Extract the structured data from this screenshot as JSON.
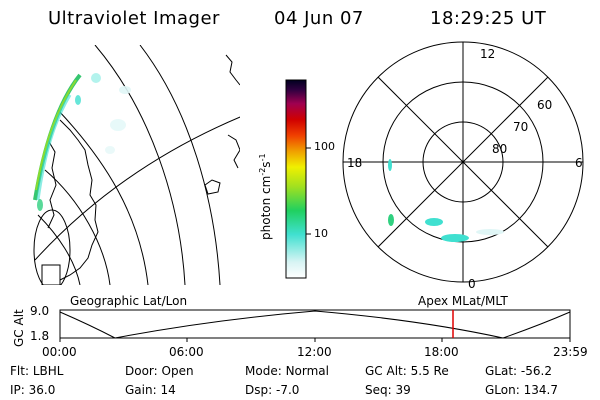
{
  "header": {
    "title": "Ultraviolet Imager",
    "date": "04 Jun 07",
    "time": "18:29:25 UT"
  },
  "colorbar": {
    "label": "photon cm",
    "label_exp": "-2",
    "label_s": "s",
    "label_s_exp": "-1",
    "ticks": [
      "100",
      "10"
    ]
  },
  "polar": {
    "mlt_labels": [
      "12",
      "18",
      "6",
      "0"
    ],
    "lat_labels": [
      "60",
      "70",
      "80"
    ]
  },
  "geo_map": {
    "label": "Geographic Lat/Lon"
  },
  "timeline": {
    "left_label": "Geographic Lat/Lon",
    "right_label": "Apex MLat/MLT",
    "axis_title": "GC Alt",
    "y_ticks": [
      "9.0",
      "1.8"
    ],
    "x_ticks": [
      "00:00",
      "06:00",
      "12:00",
      "18:00",
      "23:59"
    ],
    "marker_time": "18:29:25"
  },
  "info": {
    "row1": [
      {
        "label": "Flt:",
        "value": "LBHL"
      },
      {
        "label": "Door:",
        "value": "Open"
      },
      {
        "label": "Mode:",
        "value": "Normal"
      },
      {
        "label": "GC Alt:",
        "value": "5.5 Re"
      },
      {
        "label": "GLat:",
        "value": "-56.2"
      }
    ],
    "row2": [
      {
        "label": "IP:",
        "value": "36.0"
      },
      {
        "label": "Gain:",
        "value": "14"
      },
      {
        "label": "Dsp:",
        "value": "-7.0"
      },
      {
        "label": "Seq:",
        "value": "39"
      },
      {
        "label": "GLon:",
        "value": "134.7"
      }
    ]
  },
  "colors": {
    "marker": "#e00000",
    "colormap": [
      "#ffffff",
      "#d0f0f0",
      "#40e0d0",
      "#20d060",
      "#90e020",
      "#f0f000",
      "#f0a000",
      "#f04000",
      "#e00000",
      "#a00040",
      "#400050",
      "#000030"
    ]
  }
}
